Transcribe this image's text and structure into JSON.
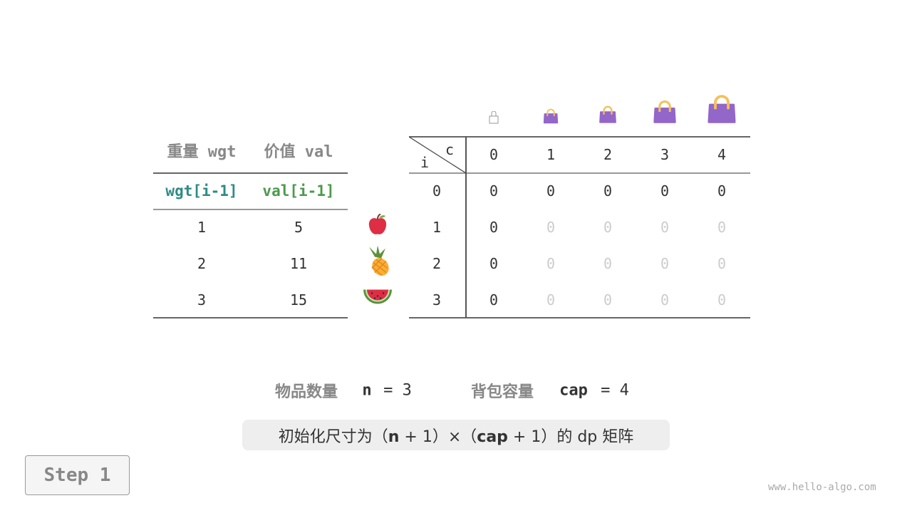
{
  "left_table": {
    "headers": [
      "重量 wgt",
      "价值 val"
    ],
    "subheaders": [
      "wgt[i-1]",
      "val[i-1]"
    ],
    "rows": [
      [
        "1",
        "5"
      ],
      [
        "2",
        "11"
      ],
      [
        "3",
        "15"
      ]
    ]
  },
  "fruits": [
    "apple",
    "pineapple",
    "watermelon"
  ],
  "dp_table": {
    "corner_c": "c",
    "corner_i": "i",
    "cols": [
      "0",
      "1",
      "2",
      "3",
      "4"
    ],
    "rows": [
      {
        "i": "0",
        "cells": [
          "0",
          "0",
          "0",
          "0",
          "0"
        ]
      },
      {
        "i": "1",
        "cells": [
          "0",
          "0",
          "0",
          "0",
          "0"
        ]
      },
      {
        "i": "2",
        "cells": [
          "0",
          "0",
          "0",
          "0",
          "0"
        ]
      },
      {
        "i": "3",
        "cells": [
          "0",
          "0",
          "0",
          "0",
          "0"
        ]
      }
    ]
  },
  "summary": {
    "n_label": "物品数量",
    "n_var": "n",
    "n_eq": "= 3",
    "cap_label": "背包容量",
    "cap_var": "cap",
    "cap_eq": "= 4"
  },
  "note": {
    "p1": "初始化尺寸为（",
    "n": "n",
    "p2": " + 1）×（",
    "cap": "cap",
    "p3": " + 1）的 dp 矩阵"
  },
  "step": "Step 1",
  "watermark": "www.hello-algo.com",
  "colors": {
    "wgt": "#2e8b85",
    "val": "#4c9a4c",
    "bag": "#9366c9",
    "handle": "#f5c05a"
  }
}
